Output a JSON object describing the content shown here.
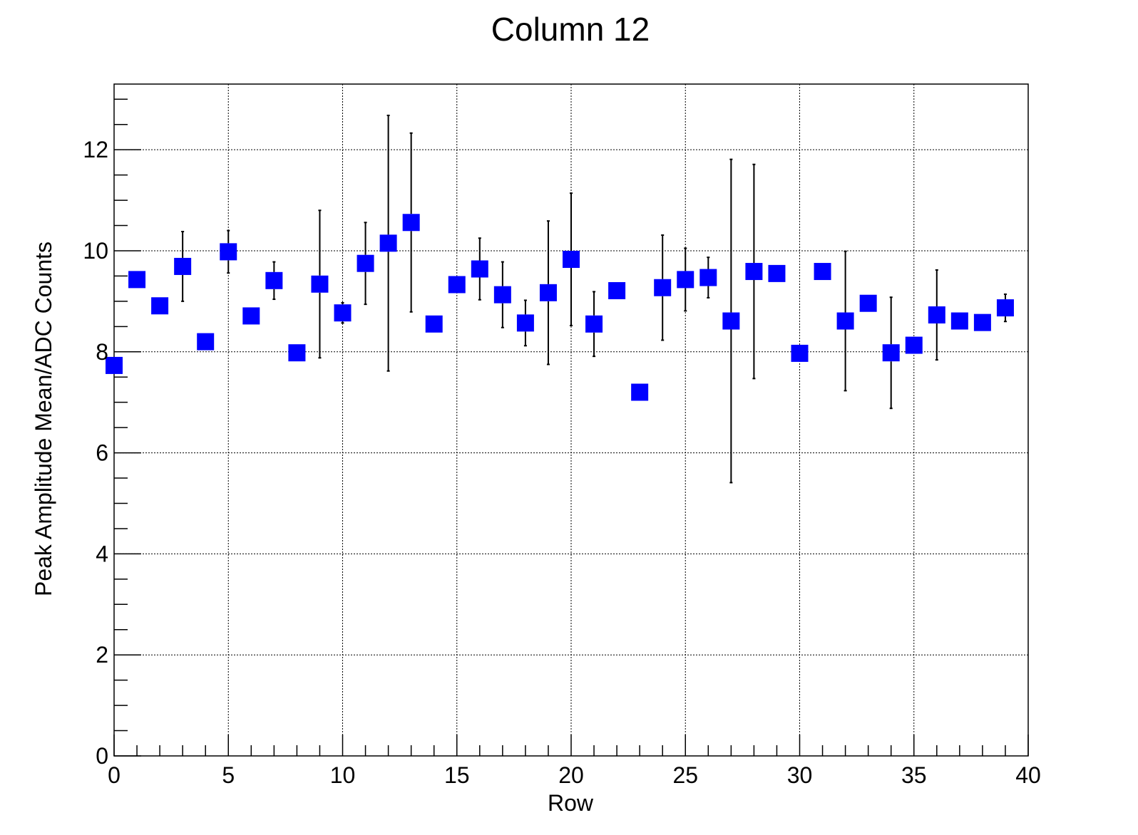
{
  "chart_data": {
    "type": "scatter",
    "title": "Column 12",
    "xlabel": "Row",
    "ylabel": "Peak Amplitude Mean/ADC Counts",
    "xlim": [
      0,
      40
    ],
    "ylim": [
      0,
      13.3
    ],
    "xticks": [
      0,
      5,
      10,
      15,
      20,
      25,
      30,
      35,
      40
    ],
    "yticks": [
      0,
      2,
      4,
      6,
      8,
      10,
      12
    ],
    "x_minor_step": 1,
    "y_minor_step": 0.5,
    "grid": true,
    "marker": "square",
    "marker_color": "#0000ff",
    "series": [
      {
        "x": [
          0,
          1,
          2,
          3,
          4,
          5,
          6,
          7,
          8,
          9,
          10,
          11,
          12,
          13,
          14,
          15,
          16,
          17,
          18,
          19,
          20,
          21,
          22,
          23,
          24,
          25,
          26,
          27,
          28,
          29,
          30,
          31,
          32,
          33,
          34,
          35,
          36,
          37,
          38,
          39
        ],
        "y": [
          7.73,
          9.43,
          8.91,
          9.69,
          8.2,
          9.98,
          8.71,
          9.41,
          7.98,
          9.34,
          8.77,
          9.75,
          10.15,
          10.56,
          8.55,
          9.33,
          9.64,
          9.13,
          8.57,
          9.17,
          9.83,
          8.55,
          9.21,
          7.2,
          9.27,
          9.43,
          9.47,
          8.61,
          9.59,
          9.55,
          7.97,
          9.59,
          8.61,
          8.96,
          7.98,
          8.13,
          8.73,
          8.61,
          8.58,
          8.87
        ],
        "err": [
          0,
          0,
          0,
          0.69,
          0,
          0.42,
          0,
          0.37,
          0,
          1.46,
          0.2,
          0.81,
          2.53,
          1.77,
          0,
          0,
          0.61,
          0.65,
          0.45,
          1.42,
          1.31,
          0.64,
          0,
          0,
          1.04,
          0.62,
          0.4,
          3.2,
          2.12,
          0,
          0,
          0,
          1.38,
          0,
          1.1,
          0,
          0.89,
          0,
          0,
          0.27
        ]
      }
    ]
  }
}
